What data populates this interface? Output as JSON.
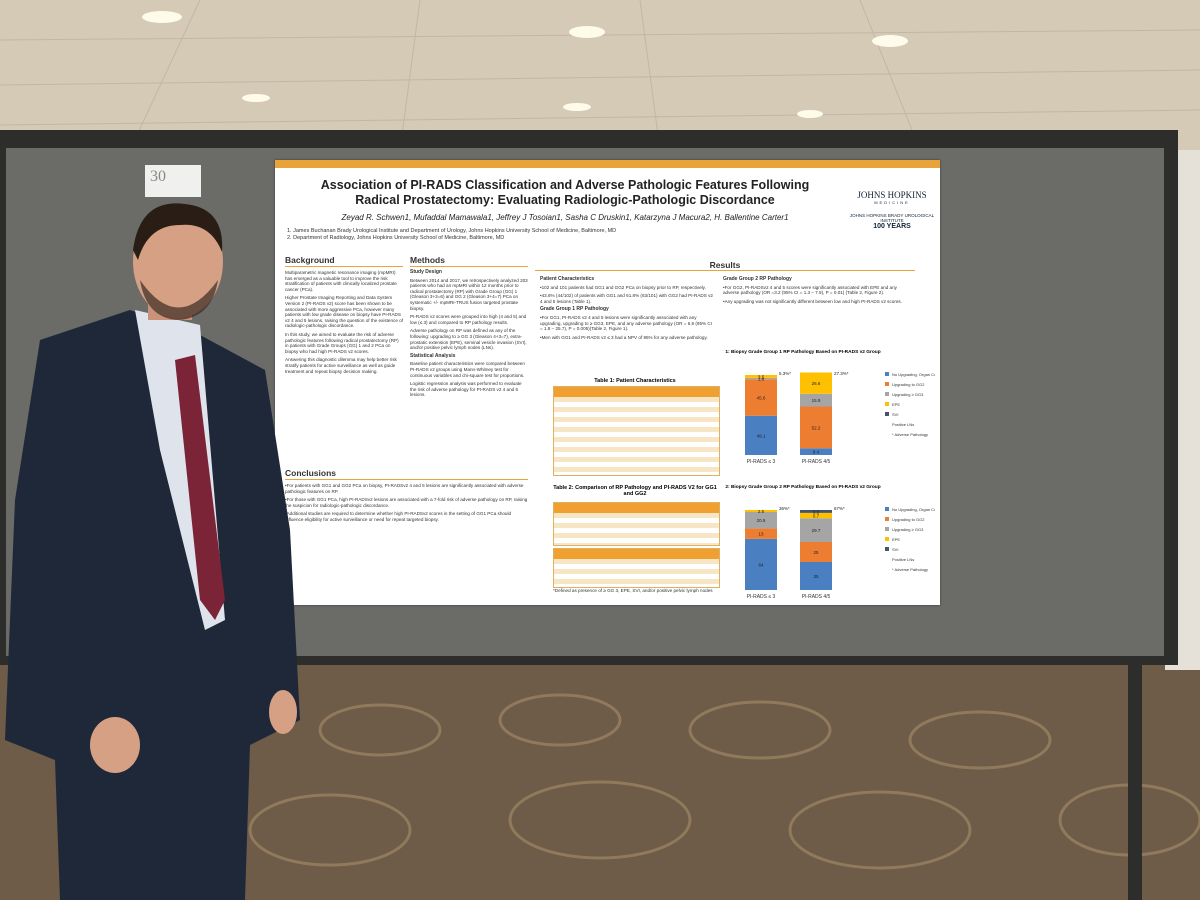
{
  "poster": {
    "board_number": "30",
    "title_line1": "Association of PI-RADS Classification and Adverse Pathologic Features Following",
    "title_line2": "Radical Prostatectomy: Evaluating Radiologic-Pathologic Discordance",
    "authors": "Zeyad R. Schwen1, Mufaddal Mamawala1, Jeffrey J Tosoian1, Sasha C Druskin1, Katarzyna J Macura2, H. Ballentine Carter1",
    "affiliations": [
      "1. James Buchanan Brady Urological Institute and Department of Urology, Johns Hopkins University School of Medicine, Baltimore, MD",
      "2. Department of Radiology, Johns Hopkins University School of Medicine, Baltimore, MD"
    ],
    "logo": "JOHNS HOPKINS",
    "logo_sub": "MEDICINE",
    "institute": "JOHNS HOPKINS BRADY UROLOGICAL INSTITUTE",
    "years": "100 YEARS",
    "background": {
      "heading": "Background",
      "paragraphs": [
        "Multiparametric magnetic resonance imaging (mpMRI) has emerged as a valuable tool to improve the risk stratification of patients with clinically localized prostate cancer (PCa).",
        "Higher Prostate Imaging Reporting and Data System Version 2 (PI-RADS v2) score has been shown to be associated with more aggressive PCa, however many patients with low grade disease on biopsy have PI-RADS v2 4 and 5 lesions, raising the question of the existence of radiologic-pathologic discordance.",
        "In this study, we aimed to evaluate the risk of adverse pathologic features following radical prostatectomy (RP) in patients with Grade Groups (GG) 1 and 2 PCa on biopsy who had high PI-RADS v2 scores.",
        "Answering this diagnostic dilemma may help better risk stratify patients for active surveillance as well as guide treatment and repeat biopsy decision making."
      ]
    },
    "methods": {
      "heading": "Methods",
      "sub1": "Study Design",
      "p1": "Between 2014 and 2017, we retrospectively analyzed 203 patients who had an mpMRI within 12 months prior to radical prostatectomy (RP) with Grade Group (GG) 1 (Gleason 3+3=6) and GG 2 (Gleason 3+4=7) PCa on systematic +/- mpMRI-TRUS fusion targeted prostate biopsy.",
      "p2": "PI-RADS v2 scores were grouped into high (4 and 5) and low (≤ 3) and compared to RP pathology results.",
      "p3": "Adverse pathology on RP was defined as any of the following: upgrading to ≥ GG 3 (Gleason 4+3=7), extra-prostatic extension (EPE), seminal vesicle invasion (SVI), and/or positive pelvic lymph nodes (LNs).",
      "sub2": "Statistical Analysis",
      "p4": "Baseline patient characteristics were compared between PI-RADS v2 groups using Mann-Whitney test for continuous variables and chi-square test for proportions.",
      "p5": "Logistic regression analysis was performed to evaluate the risk of adverse pathology for PI-RADS v2 4 and 5 lesions."
    },
    "results": {
      "heading": "Results",
      "sub1": "Patient Characteristics",
      "p1": "•102 and 101 patients had GG1 and GG2 PCa on biopsy prior to RP, respectively.",
      "p2": "•43.6% (44/102) of patients with GG1 and 61.8% (63/101) with GG2 had PI-RADS v2 4 and 5 lesions (Table 1).",
      "sub2": "Grade Group 1 RP Pathology",
      "p3": "•For GG1, PI-RADS v2 4 and 5 lesions were significantly associated with any upgrading, upgrading to ≥ GG3, EPE, and any adverse pathology (OR = 6.8 (95% CI = 1.8 – 25.7), P = 0.005)(Table 2, Figure 1).",
      "p4": "•Men with GG1 and PI-RADS v2 ≤ 3 had a NPV of 95% for any adverse pathology.",
      "sub3": "Grade Group 2 RP Pathology",
      "p5": "•For GG2, PI-RADSv2 4 and 5 scores were significantly associated with EPE and any adverse pathology (OR =3.2 (95% CI = 1.3 – 7.9), P = 0.01) (Table 2, Figure 2).",
      "p6": "•Any upgrading was not significantly different between low and high PI-RADS v2 scores.",
      "table1": "Table 1: Patient Characteristics",
      "table2": "Table 2: Comparison of RP Pathology and PI-RADS V2 for GG1 and GG2",
      "table_note": "*Defined as presence of ≥ GG 3, EPE, SVI, and/or positive pelvic lymph nodes"
    },
    "conclusions": {
      "heading": "Conclusions",
      "paragraphs": [
        "•For patients with GG1 and GG2 PCa on biopsy, PI-RADSv2 4 and 5 lesions are significantly associated with adverse pathologic features on RP.",
        "•For those with GG1 PCa, high PI-RADSv2 lesions are associated with a 7-fold risk of adverse pathology on RP, raising the suspicion for radiologic-pathologic discordance.",
        "•Additional studies are required to determine whether high PI-RADSv2 scores in the setting of GG1 PCa should influence eligibility for active surveillance or need for repeat targeted biopsy."
      ]
    },
    "segment_colors": [
      "#4a7fc1",
      "#ed7d31",
      "#a5a5a5",
      "#ffc000",
      "#44546a"
    ],
    "legend": [
      "No Upgrading, Organ Confined",
      "Upgrading to GG2",
      "Upgrading ≥ GG3",
      "EPE",
      "SVI",
      "Positive LNs",
      "* Adverse Pathology"
    ],
    "figures": [
      {
        "title": "Figure 1: Biopsy Grade Group 1 RP Pathology Based on PI-RADS v2 Group",
        "groups": [
          {
            "label": "PI-RADS ≤ 3",
            "values": [
              49.1,
              45.6,
              1.8,
              3.5
            ],
            "annotation": "5.3%*"
          },
          {
            "label": "PI-RADS 4/5",
            "values": [
              8.4,
              52.2,
              15.9,
              26.6
            ],
            "annotation": "27.3%*"
          }
        ]
      },
      {
        "title": "Figure 2: Biopsy Grade Group 2 RP Pathology Based on PI-RADS v2 Group",
        "groups": [
          {
            "label": "PI-RADS ≤ 3",
            "values": [
              64,
              13,
              20.5,
              2.5
            ],
            "annotation": "36%*"
          },
          {
            "label": "PI-RADS 4/5",
            "values": [
              35,
              25,
              29.7,
              6.7,
              3.6
            ],
            "annotation": "67%*"
          }
        ]
      }
    ]
  }
}
